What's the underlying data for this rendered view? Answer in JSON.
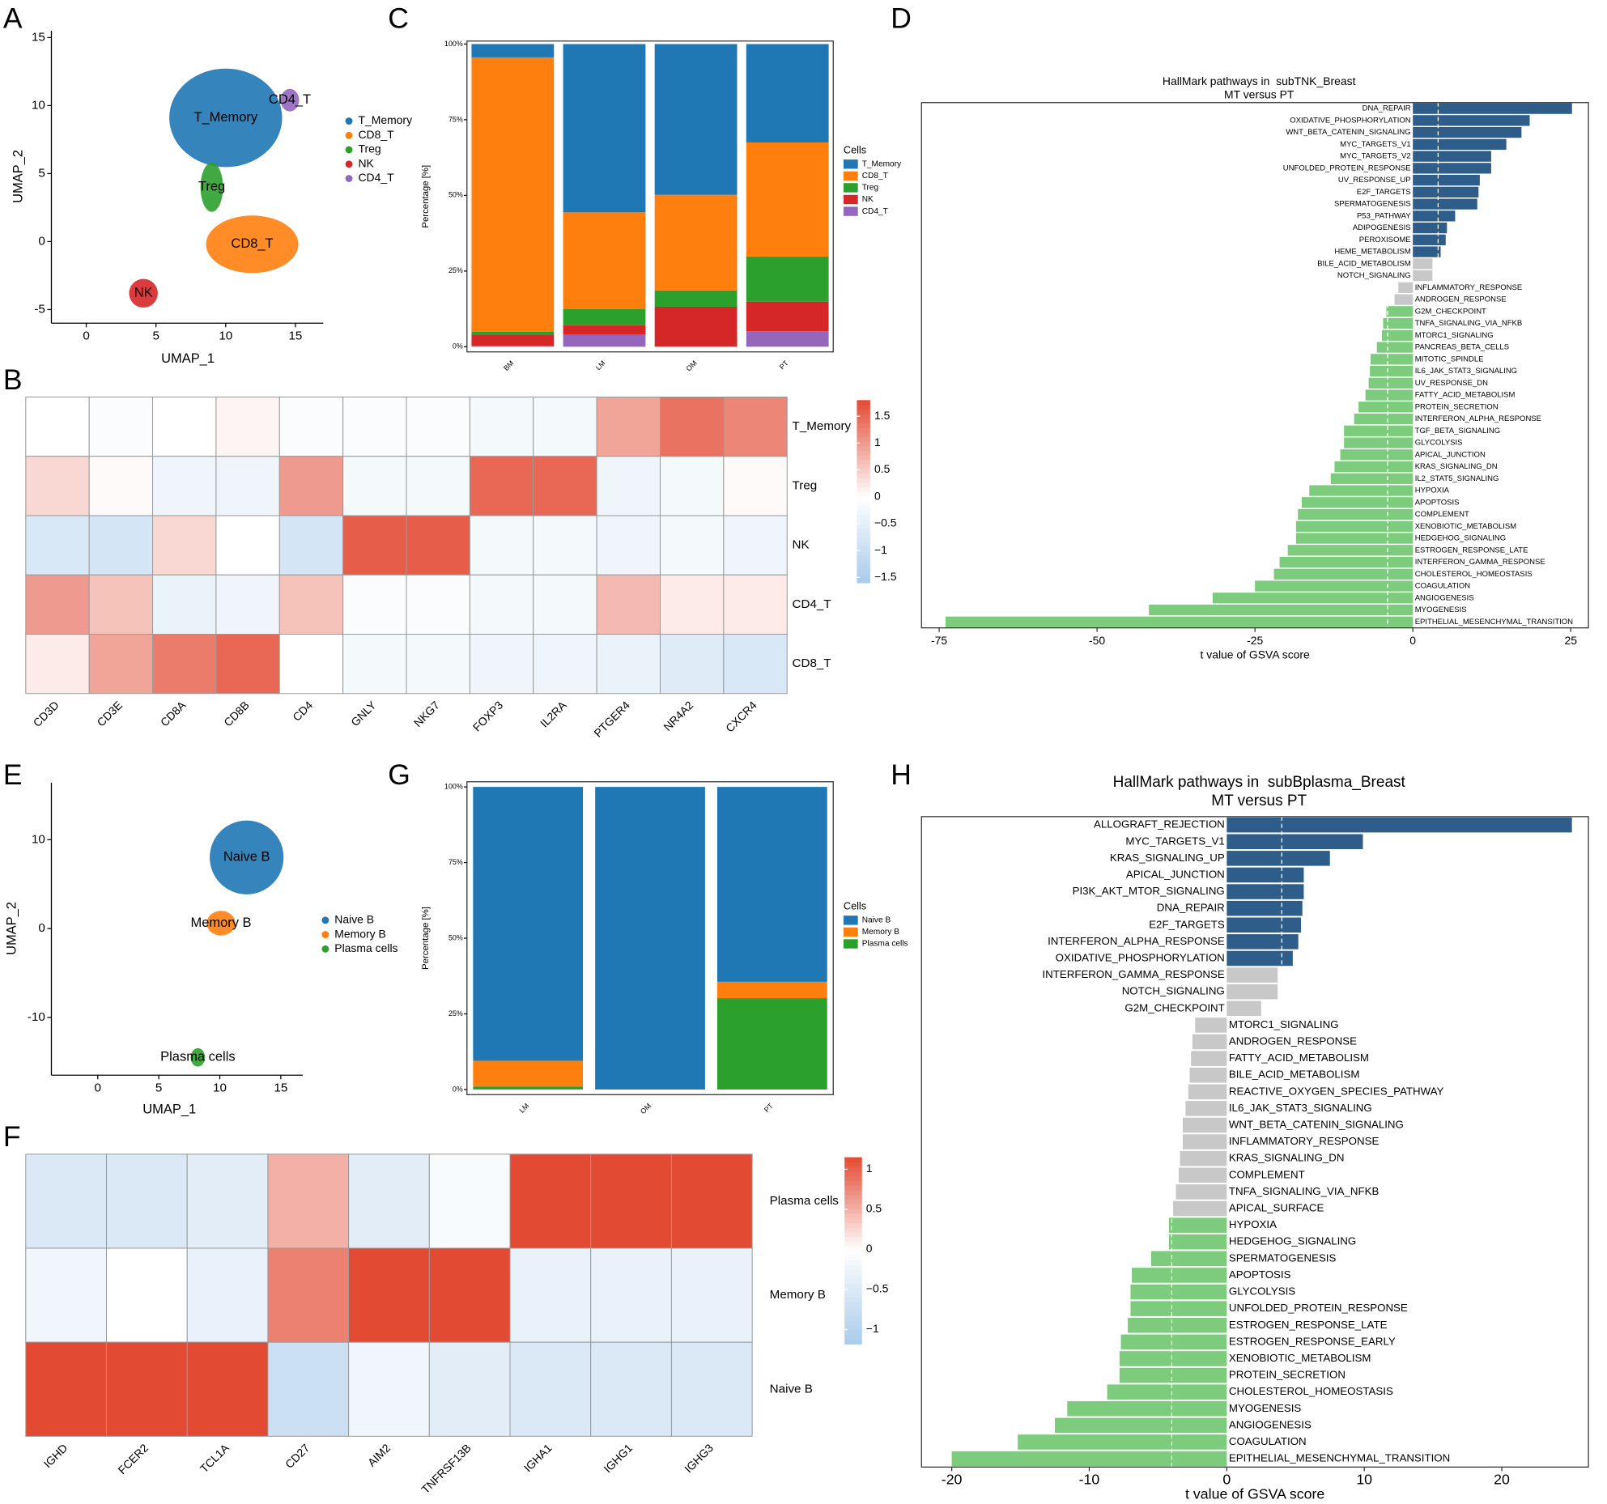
{
  "chart_data": [
    {
      "panel": "A",
      "type": "scatter",
      "xlabel": "UMAP_1",
      "ylabel": "UMAP_2",
      "series": [
        {
          "name": "T_Memory",
          "color": "#1f77b4",
          "x": [
            10
          ],
          "y": [
            9.1
          ]
        },
        {
          "name": "CD8_T",
          "color": "#ff7f0e",
          "x": [
            11.9
          ],
          "y": [
            -0.2
          ]
        },
        {
          "name": "Treg",
          "color": "#2ca02c",
          "x": [
            9
          ],
          "y": [
            4
          ]
        },
        {
          "name": "NK",
          "color": "#d62728",
          "x": [
            4.1
          ],
          "y": [
            -3.8
          ]
        },
        {
          "name": "CD4_T",
          "color": "#9467bd",
          "x": [
            14.6
          ],
          "y": [
            10.4
          ]
        }
      ],
      "xlim": [
        -2.5,
        17
      ],
      "ylim": [
        -6,
        15.5
      ],
      "xticks": [
        0,
        5,
        10,
        15
      ],
      "yticks": [
        -5,
        0,
        5,
        10,
        15
      ]
    },
    {
      "panel": "B",
      "type": "heatmap",
      "columns": [
        "CD3D",
        "CD3E",
        "CD8A",
        "CD8B",
        "CD4",
        "GNLY",
        "NKG7",
        "FOXP3",
        "IL2RA",
        "PTGER4",
        "NR4A2",
        "CXCR4"
      ],
      "rows": [
        "T_Memory",
        "Treg",
        "NK",
        "CD4_T",
        "CD8_T"
      ],
      "values": [
        [
          0,
          -0.1,
          0,
          0.1,
          -0.1,
          -0.1,
          -0.1,
          -0.2,
          -0.2,
          0.9,
          1.4,
          1.2
        ],
        [
          0.4,
          0.05,
          -0.3,
          -0.3,
          1.0,
          -0.2,
          -0.2,
          1.5,
          1.5,
          -0.3,
          -0.2,
          0.05
        ],
        [
          -0.7,
          -0.8,
          0.4,
          0,
          -0.8,
          1.6,
          1.6,
          -0.2,
          -0.2,
          -0.3,
          -0.2,
          -0.3
        ],
        [
          1.0,
          0.6,
          -0.4,
          -0.3,
          0.6,
          -0.1,
          -0.1,
          -0.2,
          -0.2,
          0.7,
          0.2,
          0.2
        ],
        [
          0.2,
          0.9,
          1.3,
          1.5,
          0,
          -0.2,
          -0.2,
          -0.3,
          -0.3,
          -0.4,
          -0.6,
          -0.7
        ]
      ],
      "colors": {
        "low": "#a9cbea",
        "mid": "#ffffff",
        "high": "#e34a33"
      },
      "clim": [
        -1.6,
        1.8
      ],
      "cticks": [
        1.5,
        1,
        0.5,
        0,
        {
          "value": -0.5,
          "label": "−0.5"
        },
        {
          "value": -1,
          "label": "−1"
        },
        {
          "value": -1.5,
          "label": "−1.5"
        }
      ]
    },
    {
      "panel": "C",
      "type": "bar",
      "stacked": true,
      "ylabel": "Percentage [%]",
      "legend_title": "Cells",
      "categories": [
        "BM",
        "LM",
        "OM",
        "PT"
      ],
      "series": [
        {
          "name": "T_Memory",
          "color": "#1f77b4",
          "values": [
            4.4,
            55.6,
            49.8,
            32.5
          ]
        },
        {
          "name": "CD8_T",
          "color": "#ff7f0e",
          "values": [
            90.6,
            31.9,
            31.6,
            37.7
          ]
        },
        {
          "name": "Treg",
          "color": "#2ca02c",
          "values": [
            1.0,
            5.4,
            5.4,
            14.9
          ]
        },
        {
          "name": "NK",
          "color": "#d62728",
          "values": [
            3.7,
            3.1,
            13.2,
            9.8
          ]
        },
        {
          "name": "CD4_T",
          "color": "#9467bd",
          "values": [
            0.3,
            4.0,
            0.0,
            5.1
          ]
        }
      ],
      "ylim": [
        -1.7,
        101
      ],
      "yticks": [
        {
          "value": 0,
          "label": "0%"
        },
        {
          "value": 25,
          "label": "25%"
        },
        {
          "value": 50,
          "label": "50%"
        },
        {
          "value": 75,
          "label": "75%"
        },
        {
          "value": 100,
          "label": "100%"
        }
      ]
    },
    {
      "panel": "D",
      "type": "bar",
      "orientation": "horizontal",
      "title": [
        "HallMark pathways in  subTNK_Breast",
        "MT versus PT"
      ],
      "xlabel": "t value of GSVA score",
      "categories": [
        "DNA_REPAIR",
        "OXIDATIVE_PHOSPHORYLATION",
        "WNT_BETA_CATENIN_SIGNALING",
        "MYC_TARGETS_V1",
        "MYC_TARGETS_V2",
        "UNFOLDED_PROTEIN_RESPONSE",
        "UV_RESPONSE_UP",
        "E2F_TARGETS",
        "SPERMATOGENESIS",
        "P53_PATHWAY",
        "ADIPOGENESIS",
        "PEROXISOME",
        "HEME_METABOLISM",
        "BILE_ACID_METABOLISM",
        "NOTCH_SIGNALING",
        "INFLAMMATORY_RESPONSE",
        "ANDROGEN_RESPONSE",
        "G2M_CHECKPOINT",
        "TNFA_SIGNALING_VIA_NFKB",
        "MTORC1_SIGNALING",
        "PANCREAS_BETA_CELLS",
        "MITOTIC_SPINDLE",
        "IL6_JAK_STAT3_SIGNALING",
        "UV_RESPONSE_DN",
        "FATTY_ACID_METABOLISM",
        "PROTEIN_SECRETION",
        "INTERFERON_ALPHA_RESPONSE",
        "TGF_BETA_SIGNALING",
        "GLYCOLYSIS",
        "APICAL_JUNCTION",
        "KRAS_SIGNALING_DN",
        "IL2_STAT5_SIGNALING",
        "HYPOXIA",
        "APOPTOSIS",
        "COMPLEMENT",
        "XENOBIOTIC_METABOLISM",
        "HEDGEHOG_SIGNALING",
        "ESTROGEN_RESPONSE_LATE",
        "INTERFERON_GAMMA_RESPONSE",
        "CHOLESTEROL_HOMEOSTASIS",
        "COAGULATION",
        "ANGIOGENESIS",
        "MYOGENESIS",
        "EPITHELIAL_MESENCHYMAL_TRANSITION"
      ],
      "values": [
        25.2,
        18.5,
        17.2,
        14.8,
        12.4,
        12.4,
        10.6,
        10.4,
        10.2,
        6.7,
        5.4,
        5.2,
        4.4,
        3.1,
        3.1,
        -2.3,
        -2.9,
        -4.2,
        -4.7,
        -4.9,
        -5.7,
        -6.7,
        -6.8,
        -7.0,
        -7.5,
        -8.6,
        -9.3,
        -10.9,
        -10.9,
        -11.5,
        -12.4,
        -13.0,
        -16.4,
        -17.6,
        -18.2,
        -18.5,
        -18.5,
        -19.8,
        -21.1,
        -22.0,
        -25.0,
        -31.7,
        -41.8,
        -74.0
      ],
      "reference_lines": [
        -4,
        4
      ],
      "colors": {
        "up": "#2f5d8a",
        "ns": "#c8c8c8",
        "down": "#7dcc7d"
      },
      "xlim": [
        -77.8,
        27.8
      ],
      "xticks": [
        -75,
        -50,
        -25,
        0,
        25
      ]
    },
    {
      "panel": "E",
      "type": "scatter",
      "xlabel": "UMAP_1",
      "ylabel": "UMAP_2",
      "series": [
        {
          "name": "Naive B",
          "color": "#1f77b4",
          "x": [
            12.2
          ],
          "y": [
            8
          ]
        },
        {
          "name": "Memory B",
          "color": "#ff7f0e",
          "x": [
            10.1
          ],
          "y": [
            0.6
          ]
        },
        {
          "name": "Plasma cells",
          "color": "#2ca02c",
          "x": [
            8.2
          ],
          "y": [
            -14.5
          ]
        }
      ],
      "xlim": [
        -3.8,
        16.8
      ],
      "ylim": [
        -16.5,
        16.4
      ],
      "xticks": [
        0,
        5,
        10,
        15
      ],
      "yticks": [
        -10,
        0,
        10
      ]
    },
    {
      "panel": "F",
      "type": "heatmap",
      "columns": [
        "IGHD",
        "FCER2",
        "TCL1A",
        "CD27",
        "AIM2",
        "TNFRSF13B",
        "IGHA1",
        "IGHG1",
        "IGHG3"
      ],
      "rows": [
        "Plasma cells",
        "Memory B",
        "Naive B"
      ],
      "values": [
        [
          -0.5,
          -0.5,
          -0.4,
          0.5,
          -0.4,
          -0.1,
          1.15,
          1.15,
          1.15
        ],
        [
          -0.2,
          0,
          -0.3,
          0.8,
          1.15,
          1.15,
          -0.3,
          -0.3,
          -0.3
        ],
        [
          1.15,
          1.15,
          1.15,
          -0.7,
          -0.2,
          -0.4,
          -0.5,
          -0.5,
          -0.5
        ]
      ],
      "colors": {
        "low": "#a9cbea",
        "mid": "#ffffff",
        "high": "#e34a33"
      },
      "clim": [
        -1.18,
        1.15
      ],
      "cticks": [
        1,
        0.5,
        0,
        {
          "value": -0.5,
          "label": "−0.5"
        },
        {
          "value": -1,
          "label": "−1"
        }
      ]
    },
    {
      "panel": "G",
      "type": "bar",
      "stacked": true,
      "ylabel": "Percentage [%]",
      "legend_title": "Cells",
      "categories": [
        "LM",
        "OM",
        "PT"
      ],
      "series": [
        {
          "name": "Naive B",
          "color": "#1f77b4",
          "values": [
            90.5,
            100,
            64.4
          ]
        },
        {
          "name": "Memory B",
          "color": "#ff7f0e",
          "values": [
            8.5,
            0,
            5.4
          ]
        },
        {
          "name": "Plasma cells",
          "color": "#2ca02c",
          "values": [
            1.0,
            0,
            30.2
          ]
        }
      ],
      "ylim": [
        -1.7,
        101.7
      ],
      "yticks": [
        {
          "value": 0,
          "label": "0%"
        },
        {
          "value": 25,
          "label": "25%"
        },
        {
          "value": 50,
          "label": "50%"
        },
        {
          "value": 75,
          "label": "75%"
        },
        {
          "value": 100,
          "label": "100%"
        }
      ]
    },
    {
      "panel": "H",
      "type": "bar",
      "orientation": "horizontal",
      "title": [
        "HallMark pathways in  subBplasma_Breast",
        "MT versus PT"
      ],
      "xlabel": "t value of GSVA score",
      "categories": [
        "ALLOGRAFT_REJECTION",
        "MYC_TARGETS_V1",
        "KRAS_SIGNALING_UP",
        "APICAL_JUNCTION",
        "PI3K_AKT_MTOR_SIGNALING",
        "DNA_REPAIR",
        "E2F_TARGETS",
        "INTERFERON_ALPHA_RESPONSE",
        "OXIDATIVE_PHOSPHORYLATION",
        "INTERFERON_GAMMA_RESPONSE",
        "NOTCH_SIGNALING",
        "G2M_CHECKPOINT",
        "MTORC1_SIGNALING",
        "ANDROGEN_RESPONSE",
        "FATTY_ACID_METABOLISM",
        "BILE_ACID_METABOLISM",
        "REACTIVE_OXYGEN_SPECIES_PATHWAY",
        "IL6_JAK_STAT3_SIGNALING",
        "WNT_BETA_CATENIN_SIGNALING",
        "INFLAMMATORY_RESPONSE",
        "KRAS_SIGNALING_DN",
        "COMPLEMENT",
        "TNFA_SIGNALING_VIA_NFKB",
        "APICAL_SURFACE",
        "HYPOXIA",
        "HEDGEHOG_SIGNALING",
        "SPERMATOGENESIS",
        "APOPTOSIS",
        "GLYCOLYSIS",
        "UNFOLDED_PROTEIN_RESPONSE",
        "ESTROGEN_RESPONSE_LATE",
        "ESTROGEN_RESPONSE_EARLY",
        "XENOBIOTIC_METABOLISM",
        "PROTEIN_SECRETION",
        "CHOLESTEROL_HOMEOSTASIS",
        "MYOGENESIS",
        "ANGIOGENESIS",
        "COAGULATION",
        "EPITHELIAL_MESENCHYMAL_TRANSITION"
      ],
      "values": [
        25.1,
        9.9,
        7.5,
        5.6,
        5.6,
        5.5,
        5.4,
        5.2,
        4.8,
        3.7,
        3.7,
        2.5,
        -2.3,
        -2.5,
        -2.6,
        -2.7,
        -2.8,
        -3.0,
        -3.2,
        -3.2,
        -3.4,
        -3.5,
        -3.7,
        -3.9,
        -4.2,
        -4.2,
        -5.5,
        -6.9,
        -7.0,
        -7.0,
        -7.2,
        -7.7,
        -7.8,
        -7.8,
        -8.7,
        -11.6,
        -12.5,
        -15.2,
        -20.0
      ],
      "reference_lines": [
        -4,
        4
      ],
      "colors": {
        "up": "#2f5d8a",
        "ns": "#c8c8c8",
        "down": "#7dcc7d"
      },
      "xlim": [
        -22.2,
        26.3
      ],
      "xticks": [
        -20,
        -10,
        0,
        10,
        20
      ]
    }
  ]
}
